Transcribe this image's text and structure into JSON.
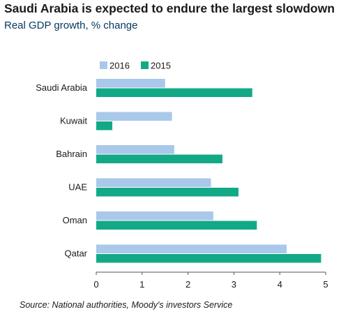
{
  "chart_data": {
    "type": "bar",
    "orientation": "horizontal",
    "title": "Saudi Arabia is expected to endure the largest slowdown",
    "subtitle": "Real GDP growth, % change",
    "source": "Source: National authorities, Moody's investors Service",
    "categories": [
      "Saudi Arabia",
      "Kuwait",
      "Bahrain",
      "UAE",
      "Oman",
      "Qatar"
    ],
    "series": [
      {
        "name": "2016",
        "color": "#a9c8ea",
        "values": [
          1.5,
          1.65,
          1.7,
          2.5,
          2.55,
          4.15
        ]
      },
      {
        "name": "2015",
        "color": "#13a987",
        "values": [
          3.4,
          0.35,
          2.75,
          3.1,
          3.5,
          4.9
        ]
      }
    ],
    "xlim": [
      0,
      5
    ],
    "xticks": [
      "0",
      "1",
      "2",
      "3",
      "4",
      "5"
    ],
    "xlabel": "",
    "ylabel": "",
    "grid": false,
    "legend_position": "top"
  }
}
